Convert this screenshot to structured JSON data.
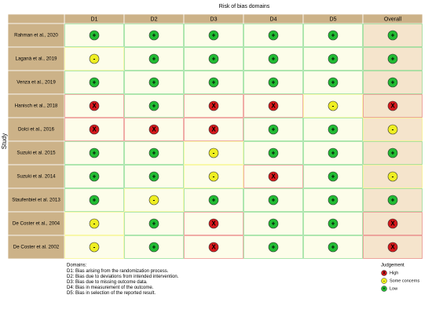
{
  "title": "Risk of bias domains",
  "y_label": "Study",
  "columns": [
    "D1",
    "D2",
    "D3",
    "D4",
    "D5",
    "Overall"
  ],
  "rows": [
    {
      "study": "Rahman et al., 2020",
      "judgements": [
        "+",
        "+",
        "+",
        "+",
        "+",
        "+"
      ]
    },
    {
      "study": "Laganà et al., 2019",
      "judgements": [
        "-",
        "+",
        "+",
        "+",
        "+",
        "+"
      ]
    },
    {
      "study": "Venza et al., 2019",
      "judgements": [
        "+",
        "+",
        "+",
        "+",
        "+",
        "+"
      ]
    },
    {
      "study": "Hanisch et al., 2018",
      "judgements": [
        "X",
        "+",
        "X",
        "X",
        "-",
        "X"
      ]
    },
    {
      "study": "Dolci et al., 2016",
      "judgements": [
        "X",
        "X",
        "X",
        "+",
        "+",
        "-"
      ]
    },
    {
      "study": "Suzuki et al. 2015",
      "judgements": [
        "+",
        "+",
        "-",
        "+",
        "+",
        "+"
      ]
    },
    {
      "study": "Suzuki et al. 2014",
      "judgements": [
        "+",
        "+",
        "-",
        "X",
        "+",
        "-"
      ]
    },
    {
      "study": "Staufenbiel et al. 2013",
      "judgements": [
        "+",
        "-",
        "+",
        "+",
        "+",
        "+"
      ]
    },
    {
      "study": "De Coster et al., 2004",
      "judgements": [
        "-",
        "+",
        "X",
        "+",
        "+",
        "X"
      ]
    },
    {
      "study": "De Coster et al. 2002",
      "judgements": [
        "-",
        "+",
        "X",
        "+",
        "+",
        "X"
      ]
    }
  ],
  "notes": {
    "heading": "Domains:",
    "items": [
      "D1: Bias arising from the randomization process.",
      "D2: Bias due to deviations from intended intervention.",
      "D3: Bias due to missing outcome data.",
      "D4: Bias in measurement of the outcome.",
      "D5: Bias in selection of the reported result."
    ]
  },
  "legend": {
    "title": "Judgement",
    "items": [
      {
        "symbol": "X",
        "label": "High",
        "color": "#d7191c"
      },
      {
        "symbol": "-",
        "label": "Some concerns",
        "color": "#eeee22"
      },
      {
        "symbol": "+",
        "label": "Low",
        "color": "#22bb33"
      }
    ]
  }
}
